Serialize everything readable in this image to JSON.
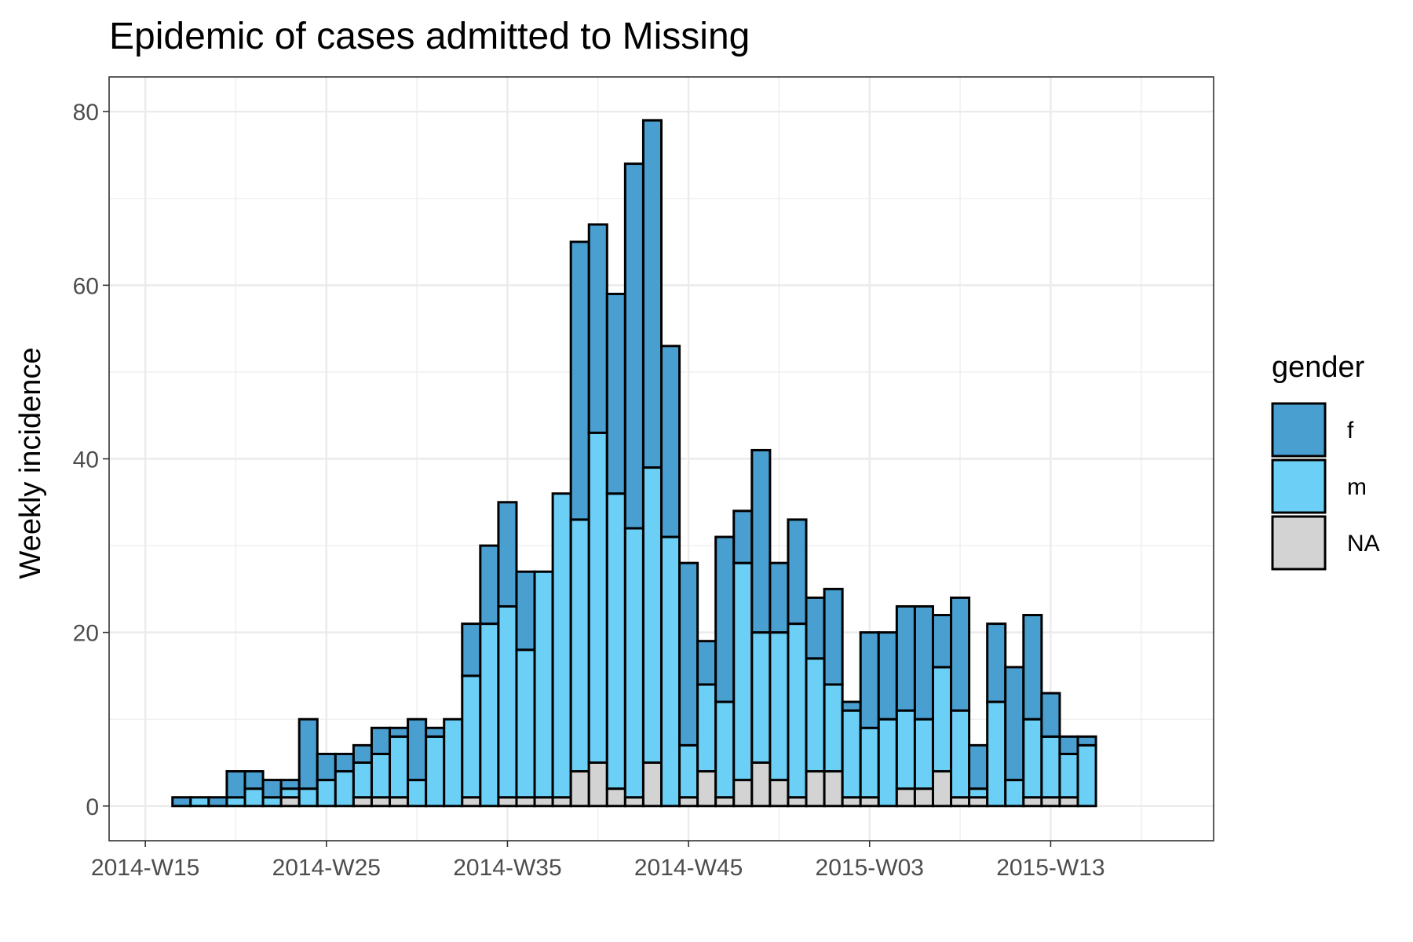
{
  "chart_data": {
    "type": "bar",
    "stacked": true,
    "title": "Epidemic of cases admitted to Missing",
    "xlabel": "",
    "ylabel": "Weekly incidence",
    "ylim": [
      -4,
      84
    ],
    "yticks": [
      0,
      20,
      40,
      60,
      80
    ],
    "x_week_range": [
      13,
      74
    ],
    "first_bar_week": 17,
    "x_ticks": [
      {
        "label": "2014-W15",
        "week": 15
      },
      {
        "label": "2014-W25",
        "week": 25
      },
      {
        "label": "2014-W35",
        "week": 35
      },
      {
        "label": "2014-W45",
        "week": 45
      },
      {
        "label": "2015-W03",
        "week": 55
      },
      {
        "label": "2015-W13",
        "week": 65
      }
    ],
    "grid": true,
    "legend": {
      "title": "gender",
      "position": "right"
    },
    "series": [
      {
        "name": "NA",
        "color": "#d3d3d3",
        "values": [
          0,
          0,
          0,
          0,
          0,
          0,
          1,
          0,
          0,
          0,
          1,
          1,
          1,
          0,
          0,
          0,
          1,
          0,
          1,
          1,
          1,
          1,
          4,
          5,
          2,
          1,
          5,
          0,
          1,
          4,
          1,
          3,
          5,
          3,
          1,
          4,
          4,
          1,
          1,
          0,
          2,
          2,
          4,
          1,
          1,
          0,
          0,
          1,
          1,
          1,
          0
        ]
      },
      {
        "name": "m",
        "color": "#6ccff6",
        "values": [
          0,
          1,
          0,
          1,
          2,
          1,
          1,
          2,
          3,
          4,
          4,
          5,
          7,
          3,
          8,
          10,
          14,
          21,
          22,
          17,
          26,
          35,
          29,
          38,
          34,
          31,
          34,
          31,
          6,
          10,
          11,
          25,
          15,
          17,
          20,
          13,
          10,
          10,
          8,
          10,
          9,
          8,
          12,
          10,
          1,
          12,
          3,
          9,
          7,
          5,
          7
        ]
      },
      {
        "name": "f",
        "color": "#4a9fd1",
        "values": [
          1,
          0,
          1,
          3,
          2,
          2,
          1,
          8,
          3,
          2,
          2,
          3,
          1,
          7,
          1,
          0,
          6,
          9,
          12,
          9,
          0,
          0,
          32,
          24,
          23,
          42,
          40,
          22,
          21,
          5,
          19,
          6,
          21,
          8,
          12,
          7,
          11,
          1,
          11,
          10,
          12,
          13,
          6,
          13,
          5,
          9,
          13,
          12,
          5,
          2,
          1
        ]
      }
    ]
  }
}
